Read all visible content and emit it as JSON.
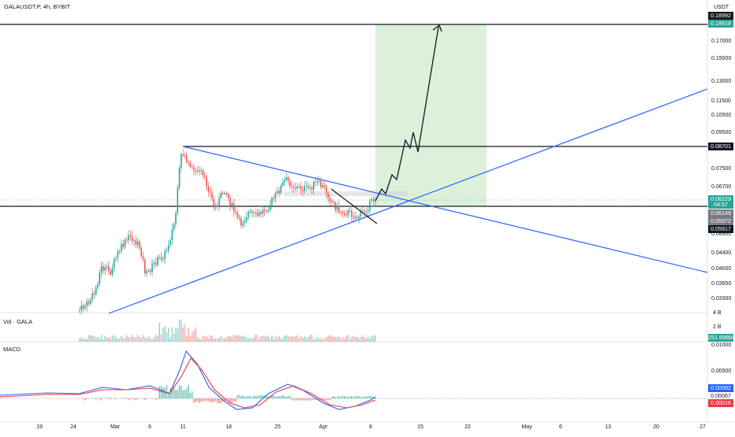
{
  "header": {
    "symbol": "GALAUSDT.P, 4h, BYBIT",
    "currency": "USDT"
  },
  "price_axis": {
    "ticks": [
      "0.17000",
      "0.15000",
      "0.13000",
      "0.11500",
      "0.10500",
      "0.09500",
      "0.07500",
      "0.06700",
      "0.04900",
      "0.04400",
      "0.04000",
      "0.03650",
      "0.03300"
    ],
    "tags": [
      {
        "text": "0.18992",
        "color": "#131722"
      },
      {
        "text": "0.18918",
        "color": "#26a69a"
      },
      {
        "text": "0.08701",
        "color": "#131722"
      },
      {
        "text": "0.06229",
        "color": "#26a69a"
      },
      {
        "text": "04:57",
        "color": "#26a69a"
      },
      {
        "text": "0.06149",
        "color": "#787b86"
      },
      {
        "text": "0.05972",
        "color": "#787b86"
      },
      {
        "text": "0.05917",
        "color": "#131722"
      }
    ]
  },
  "volume": {
    "title": "Vol · GALA",
    "ticks": [
      "4 B",
      "2 B"
    ],
    "last_tag": "251.698M",
    "last_color": "#26a69a"
  },
  "macd": {
    "title": "MACD",
    "ticks": [
      "0.01000",
      "0.00500"
    ],
    "tags": [
      {
        "text": "0.00082",
        "color": "#2962ff"
      },
      {
        "text": "0.00067",
        "color": "#ffffff"
      },
      {
        "text": "0.00016",
        "color": "#f23645"
      }
    ]
  },
  "time_axis": {
    "labels": [
      "19",
      "24",
      "Mar",
      "6",
      "11",
      "18",
      "25",
      "Apr",
      "8",
      "15",
      "22",
      "May",
      "6",
      "13",
      "20",
      "27"
    ]
  },
  "colors": {
    "up": "#26a69a",
    "down": "#ef5350",
    "trendline": "#2962ff",
    "target_zone": "#d8eed6"
  }
}
